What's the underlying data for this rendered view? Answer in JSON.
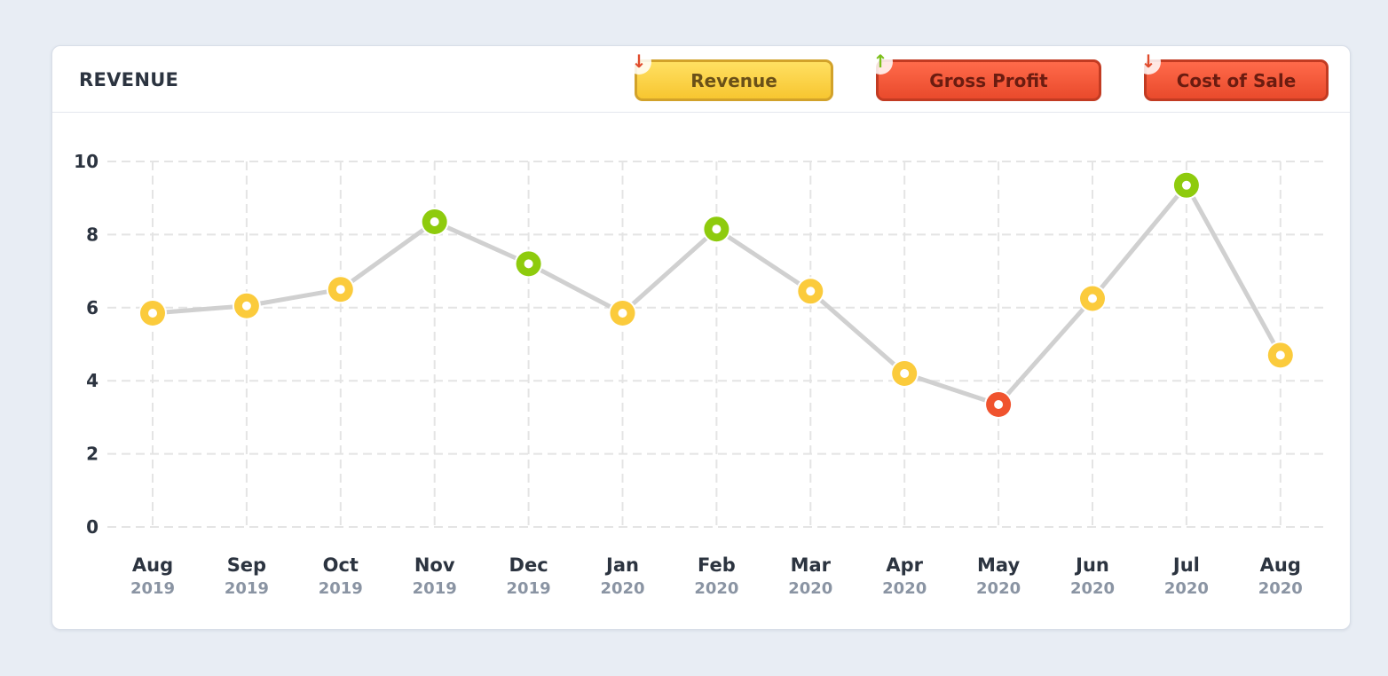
{
  "card": {
    "title": "REVENUE"
  },
  "toggles": [
    {
      "label": "Revenue",
      "trend": "down",
      "trend_icon": "↓",
      "color": "#fcd447"
    },
    {
      "label": "Gross Profit",
      "trend": "up",
      "trend_icon": "↑",
      "color": "#f25b3b"
    },
    {
      "label": "Cost of Sale",
      "trend": "down",
      "trend_icon": "↓",
      "color": "#f25b3b"
    }
  ],
  "chart_data": {
    "type": "line",
    "x": [
      {
        "month": "Aug",
        "year": "2019"
      },
      {
        "month": "Sep",
        "year": "2019"
      },
      {
        "month": "Oct",
        "year": "2019"
      },
      {
        "month": "Nov",
        "year": "2019"
      },
      {
        "month": "Dec",
        "year": "2019"
      },
      {
        "month": "Jan",
        "year": "2020"
      },
      {
        "month": "Feb",
        "year": "2020"
      },
      {
        "month": "Mar",
        "year": "2020"
      },
      {
        "month": "Apr",
        "year": "2020"
      },
      {
        "month": "May",
        "year": "2020"
      },
      {
        "month": "Jun",
        "year": "2020"
      },
      {
        "month": "Jul",
        "year": "2020"
      },
      {
        "month": "Aug",
        "year": "2020"
      }
    ],
    "series": [
      {
        "values": [
          5.85,
          6.05,
          6.5,
          8.35,
          7.2,
          5.85,
          8.15,
          6.45,
          4.2,
          3.35,
          6.25,
          9.35,
          4.7
        ],
        "status": [
          "neutral",
          "neutral",
          "neutral",
          "high",
          "high",
          "neutral",
          "high",
          "neutral",
          "neutral",
          "low",
          "neutral",
          "high",
          "neutral"
        ]
      }
    ],
    "ylim": [
      0,
      10
    ],
    "yticks": [
      0,
      2,
      4,
      6,
      8,
      10
    ],
    "grid": true,
    "colors": {
      "line": "#d0d0d0",
      "neutral": "#fbcb3c",
      "high": "#8ecb0d",
      "low": "#f0532e",
      "grid": "#e4e4e4",
      "axis_text": "#2c3440",
      "year_text": "#8a94a3"
    }
  }
}
